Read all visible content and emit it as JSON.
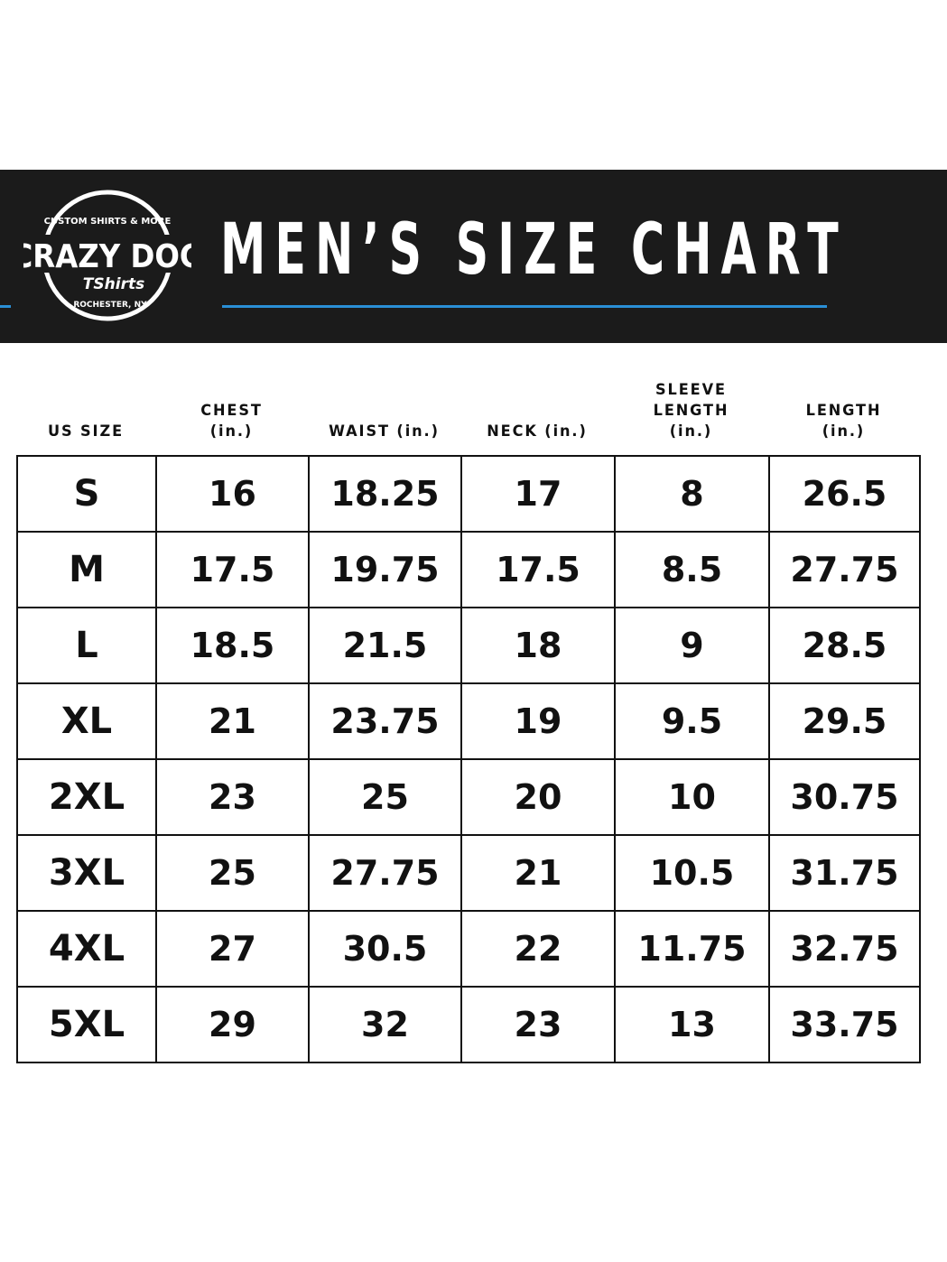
{
  "brand": {
    "logo_text": [
      "CUSTOM SHIRTS & MORE",
      "CRAZY DOG",
      "TShirts",
      "ROCHESTER, NY"
    ],
    "accent_color": "#2a8fd6",
    "banner_color": "#1b1b1b"
  },
  "title": "MEN’S SIZE CHART",
  "headers": [
    {
      "line1": "",
      "line2": "",
      "line3": "US SIZE"
    },
    {
      "line1": "",
      "line2": "CHEST",
      "line3": "(in.)"
    },
    {
      "line1": "",
      "line2": "",
      "line3": "WAIST (in.)"
    },
    {
      "line1": "",
      "line2": "",
      "line3": "NECK (in.)"
    },
    {
      "line1": "SLEEVE",
      "line2": "LENGTH",
      "line3": "(in.)"
    },
    {
      "line1": "",
      "line2": "LENGTH",
      "line3": "(in.)"
    }
  ],
  "rows": [
    [
      "S",
      "16",
      "18.25",
      "17",
      "8",
      "26.5"
    ],
    [
      "M",
      "17.5",
      "19.75",
      "17.5",
      "8.5",
      "27.75"
    ],
    [
      "L",
      "18.5",
      "21.5",
      "18",
      "9",
      "28.5"
    ],
    [
      "XL",
      "21",
      "23.75",
      "19",
      "9.5",
      "29.5"
    ],
    [
      "2XL",
      "23",
      "25",
      "20",
      "10",
      "30.75"
    ],
    [
      "3XL",
      "25",
      "27.75",
      "21",
      "10.5",
      "31.75"
    ],
    [
      "4XL",
      "27",
      "30.5",
      "22",
      "11.75",
      "32.75"
    ],
    [
      "5XL",
      "29",
      "32",
      "23",
      "13",
      "33.75"
    ]
  ]
}
